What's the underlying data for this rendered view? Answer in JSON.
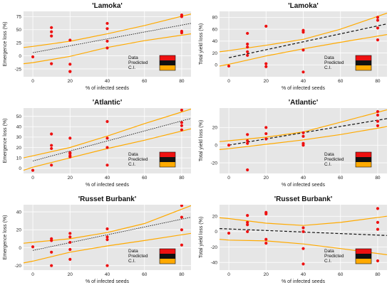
{
  "figure": {
    "legend_labels": [
      "Data",
      "Predicted",
      "C.I."
    ],
    "colors": {
      "data": "#ee1111",
      "predicted": "#111111",
      "ci": "#ffaa00",
      "plot_bg": "#e6e6e6",
      "grid": "#ffffff"
    }
  },
  "chart_data": [
    {
      "type": "scatter",
      "title": "'Lamoka'",
      "xlabel": "% of infected seeds",
      "ylabel": "Emergence loss (%)",
      "xlim": [
        -5,
        85
      ],
      "ylim": [
        -40,
        85
      ],
      "xticks": [
        0,
        20,
        40,
        60,
        80
      ],
      "yticks": [
        -25,
        0,
        25,
        50,
        75
      ],
      "grid": true,
      "legend_placement": "bottom-right",
      "predicted_style": "dotted",
      "points": {
        "x": [
          0,
          10,
          10,
          10,
          10,
          20,
          20,
          20,
          20,
          40,
          40,
          40,
          40,
          80,
          80,
          80,
          80
        ],
        "y": [
          -2,
          54,
          46,
          38,
          -15,
          30,
          -16,
          -30,
          -30,
          62,
          52,
          28,
          15,
          78,
          75,
          47,
          44
        ]
      },
      "predicted": {
        "x": [
          0,
          85
        ],
        "y": [
          6,
          62
        ]
      },
      "ci_upper": {
        "x": [
          -5,
          0,
          20,
          40,
          60,
          85
        ],
        "y": [
          16,
          18,
          28,
          42,
          58,
          80
        ]
      },
      "ci_lower": {
        "x": [
          -5,
          0,
          20,
          40,
          60,
          85
        ],
        "y": [
          -15,
          -13,
          -1,
          16,
          29,
          42
        ]
      }
    },
    {
      "type": "scatter",
      "title": "'Lamoka'",
      "xlabel": "% of infected seeds",
      "ylabel": "Total yield loss (%)",
      "xlim": [
        -5,
        85
      ],
      "ylim": [
        -20,
        90
      ],
      "xticks": [
        0,
        20,
        40,
        60,
        80
      ],
      "yticks": [
        0,
        20,
        40,
        60,
        80
      ],
      "grid": true,
      "legend_placement": "bottom-right",
      "predicted_style": "dashed",
      "points": {
        "x": [
          0,
          10,
          10,
          10,
          10,
          10,
          20,
          20,
          20,
          40,
          40,
          40,
          40,
          80,
          80,
          80,
          80
        ],
        "y": [
          -2,
          53,
          35,
          30,
          22,
          16,
          65,
          2,
          -3,
          58,
          55,
          25,
          -12,
          80,
          75,
          62,
          42
        ]
      },
      "predicted": {
        "x": [
          0,
          85
        ],
        "y": [
          12,
          69
        ]
      },
      "ci_upper": {
        "x": [
          -5,
          0,
          20,
          40,
          60,
          85
        ],
        "y": [
          22,
          24,
          33,
          43,
          60,
          87
        ]
      },
      "ci_lower": {
        "x": [
          -5,
          0,
          20,
          40,
          60,
          85
        ],
        "y": [
          -2,
          1,
          15,
          27,
          38,
          51
        ]
      }
    },
    {
      "type": "scatter",
      "title": "'Atlantic'",
      "xlabel": "% of infected seeds",
      "ylabel": "Emergence loss (%)",
      "xlim": [
        -5,
        85
      ],
      "ylim": [
        -5,
        58
      ],
      "xticks": [
        0,
        20,
        40,
        60,
        80
      ],
      "yticks": [
        0,
        10,
        20,
        30,
        40,
        50
      ],
      "grid": true,
      "legend_placement": "bottom-right",
      "predicted_style": "dotted",
      "points": {
        "x": [
          0,
          10,
          10,
          10,
          10,
          20,
          20,
          20,
          20,
          20,
          40,
          40,
          40,
          40,
          80,
          80,
          80,
          80
        ],
        "y": [
          -2,
          33,
          22,
          19,
          3,
          29,
          15,
          14,
          12,
          11,
          45,
          29,
          20,
          3,
          56,
          44,
          41,
          37
        ]
      },
      "predicted": {
        "x": [
          0,
          85
        ],
        "y": [
          7,
          48
        ]
      },
      "ci_upper": {
        "x": [
          -5,
          0,
          20,
          40,
          60,
          85
        ],
        "y": [
          10,
          12,
          20,
          31,
          43,
          57
        ]
      },
      "ci_lower": {
        "x": [
          -5,
          0,
          20,
          40,
          60,
          85
        ],
        "y": [
          -2,
          1,
          10,
          19,
          27,
          38
        ]
      }
    },
    {
      "type": "scatter",
      "title": "'Atlantic'",
      "xlabel": "% of infected seeds",
      "ylabel": "Total yield loss (%)",
      "xlim": [
        -5,
        85
      ],
      "ylim": [
        -32,
        42
      ],
      "xticks": [
        0,
        20,
        40,
        60,
        80
      ],
      "yticks": [
        -20,
        0,
        20
      ],
      "grid": true,
      "legend_placement": "bottom-right",
      "predicted_style": "dashed",
      "points": {
        "x": [
          0,
          10,
          10,
          10,
          10,
          20,
          20,
          20,
          40,
          40,
          40,
          40,
          80,
          80,
          80,
          80
        ],
        "y": [
          0,
          12,
          5,
          2,
          -28,
          20,
          13,
          7,
          14,
          10,
          2,
          0,
          38,
          34,
          27,
          22
        ]
      },
      "predicted": {
        "x": [
          0,
          85
        ],
        "y": [
          0,
          30
        ]
      },
      "ci_upper": {
        "x": [
          -5,
          0,
          20,
          40,
          60,
          85
        ],
        "y": [
          4,
          5,
          9,
          15,
          26,
          40
        ]
      },
      "ci_lower": {
        "x": [
          -5,
          0,
          20,
          40,
          60,
          85
        ],
        "y": [
          -5,
          -4,
          1,
          6,
          12,
          21
        ]
      }
    },
    {
      "type": "scatter",
      "title": "'Russet Burbank'",
      "xlabel": "% of infected seeds",
      "ylabel": "Emergence loss (%)",
      "xlim": [
        -5,
        85
      ],
      "ylim": [
        -25,
        48
      ],
      "xticks": [
        0,
        20,
        40,
        60,
        80
      ],
      "yticks": [
        -20,
        0,
        20,
        40
      ],
      "grid": true,
      "legend_placement": "bottom-right",
      "predicted_style": "dotted",
      "points": {
        "x": [
          0,
          10,
          10,
          10,
          10,
          20,
          20,
          20,
          20,
          20,
          40,
          40,
          40,
          40,
          80,
          80,
          80,
          80
        ],
        "y": [
          1,
          10,
          8,
          -5,
          -20,
          16,
          12,
          6,
          -2,
          -13,
          21,
          12,
          9,
          -20,
          47,
          34,
          20,
          3
        ]
      },
      "predicted": {
        "x": [
          0,
          85
        ],
        "y": [
          -3,
          34
        ]
      },
      "ci_upper": {
        "x": [
          -5,
          0,
          20,
          40,
          60,
          85
        ],
        "y": [
          5,
          6,
          10,
          17,
          27,
          47
        ]
      },
      "ci_lower": {
        "x": [
          -5,
          0,
          20,
          40,
          60,
          85
        ],
        "y": [
          -17,
          -15,
          -5,
          2,
          8,
          16
        ]
      }
    },
    {
      "type": "scatter",
      "title": "'Russet Burbank'",
      "xlabel": "% of infected seeds",
      "ylabel": "Total yield loss (%)",
      "xlim": [
        -5,
        85
      ],
      "ylim": [
        -50,
        35
      ],
      "xticks": [
        0,
        20,
        40,
        60,
        80
      ],
      "yticks": [
        -40,
        -20,
        0,
        20
      ],
      "grid": true,
      "legend_placement": "bottom-right",
      "predicted_style": "dashed",
      "points": {
        "x": [
          0,
          10,
          10,
          10,
          10,
          20,
          20,
          20,
          20,
          40,
          40,
          40,
          40,
          80,
          80,
          80,
          80
        ],
        "y": [
          -2,
          21,
          12,
          9,
          0,
          25,
          23,
          -10,
          -15,
          5,
          0,
          -22,
          -42,
          30,
          12,
          3,
          -38
        ]
      },
      "predicted": {
        "x": [
          -5,
          85
        ],
        "y": [
          4,
          -5
        ]
      },
      "ci_upper": {
        "x": [
          -5,
          0,
          20,
          40,
          60,
          85
        ],
        "y": [
          18,
          17,
          11,
          8,
          12,
          20
        ]
      },
      "ci_lower": {
        "x": [
          -5,
          0,
          20,
          40,
          60,
          85
        ],
        "y": [
          -10,
          -11,
          -12,
          -16,
          -22,
          -30
        ]
      }
    }
  ]
}
